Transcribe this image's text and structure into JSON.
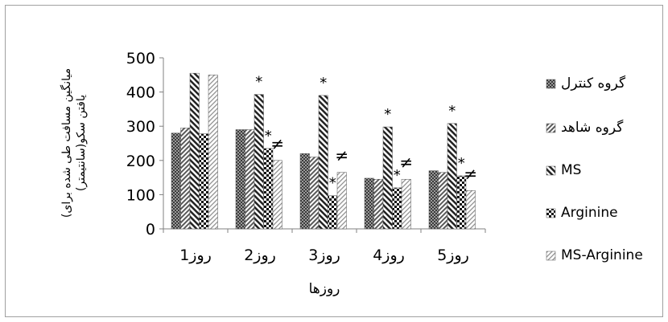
{
  "chart_data": {
    "type": "bar",
    "title": "",
    "categories": [
      "روز1",
      "روز2",
      "روز3",
      "روز4",
      "روز5"
    ],
    "xlabel": "روزها",
    "ylabel_line1": "(میانگین مسافت طی شده برای",
    "ylabel_line2": "یافتن سکو(سانتیمتر)",
    "ylim": [
      0,
      500
    ],
    "yticks": [
      0,
      100,
      200,
      300,
      400,
      500
    ],
    "series": [
      {
        "name": "گروه کنترل",
        "values": [
          280,
          290,
          220,
          148,
          170
        ],
        "pattern": "checker"
      },
      {
        "name": "گروه شاهد",
        "values": [
          295,
          290,
          210,
          145,
          165
        ],
        "pattern": "diag"
      },
      {
        "name": "MS",
        "values": [
          455,
          393,
          390,
          298,
          308
        ],
        "pattern": "stripe"
      },
      {
        "name": "Arginine",
        "values": [
          278,
          235,
          97,
          120,
          155
        ],
        "pattern": "check2"
      },
      {
        "name": "MS-Arginine",
        "values": [
          450,
          200,
          165,
          145,
          112
        ],
        "pattern": "light"
      }
    ],
    "annotations": [
      {
        "category": 1,
        "series": 2,
        "text": "*"
      },
      {
        "category": 1,
        "series": 3,
        "text": "*"
      },
      {
        "category": 1,
        "series": 4,
        "text": "≠"
      },
      {
        "category": 2,
        "series": 2,
        "text": "*"
      },
      {
        "category": 2,
        "series": 3,
        "text": "*"
      },
      {
        "category": 2,
        "series": 4,
        "text": "≠"
      },
      {
        "category": 3,
        "series": 2,
        "text": "*"
      },
      {
        "category": 3,
        "series": 3,
        "text": "*"
      },
      {
        "category": 3,
        "series": 4,
        "text": "≠"
      },
      {
        "category": 4,
        "series": 2,
        "text": "*"
      },
      {
        "category": 4,
        "series": 3,
        "text": "*"
      },
      {
        "category": 4,
        "series": 4,
        "text": "≠"
      }
    ],
    "legend_position": "right",
    "grid": false
  }
}
